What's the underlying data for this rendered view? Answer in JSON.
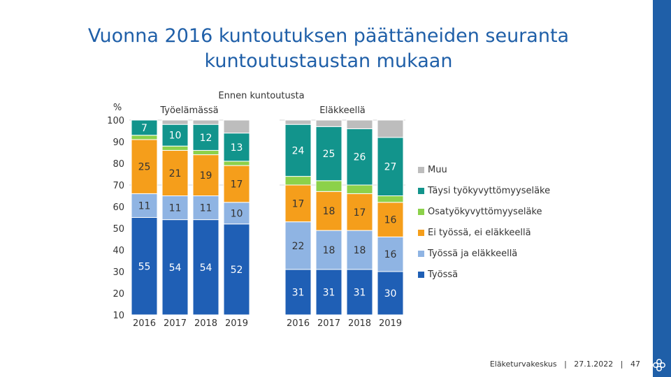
{
  "slide": {
    "title_line1": "Vuonna 2016 kuntoutuksen päättäneiden seuranta",
    "title_line2": "kuntoutustaustan mukaan",
    "footer_org": "Eläketurvakeskus",
    "footer_date": "27.1.2022",
    "footer_page": "47",
    "footer_sep": "|"
  },
  "colors": {
    "Työssä": "#1f5fb5",
    "Työssä ja eläkkeellä": "#8fb4e3",
    "Ei työssä, ei eläkkeellä": "#f59e1b",
    "Osatyökyvyttömyyseläke": "#8cd14a",
    "Täysi työkyvyttömyyseläke": "#12948c",
    "Muu": "#bdbdbd"
  },
  "chart_data": {
    "type": "bar",
    "stacked": true,
    "title": "Ennen  kuntoutusta",
    "ylabel": "%",
    "ylim": [
      10,
      100
    ],
    "yticks": [
      10,
      20,
      30,
      40,
      50,
      60,
      70,
      80,
      90,
      100
    ],
    "groups": [
      {
        "label": "Työelämässä",
        "categories": [
          "2016",
          "2017",
          "2018",
          "2019"
        ]
      },
      {
        "label": "Eläkkeellä",
        "categories": [
          "2016",
          "2017",
          "2018",
          "2019"
        ]
      }
    ],
    "series": [
      {
        "name": "Työssä",
        "values": [
          [
            55,
            54,
            54,
            52
          ],
          [
            31,
            31,
            31,
            30
          ]
        ],
        "labels": [
          [
            "55",
            "54",
            "54",
            "52"
          ],
          [
            "31",
            "31",
            "31",
            "30"
          ]
        ]
      },
      {
        "name": "Työssä ja eläkkeellä",
        "values": [
          [
            11,
            11,
            11,
            10
          ],
          [
            22,
            18,
            18,
            16
          ]
        ],
        "labels": [
          [
            "11",
            "11",
            "11",
            "10"
          ],
          [
            "22",
            "18",
            "18",
            "16"
          ]
        ]
      },
      {
        "name": "Ei työssä, ei eläkkeellä",
        "values": [
          [
            25,
            21,
            19,
            17
          ],
          [
            17,
            18,
            17,
            16
          ]
        ],
        "labels": [
          [
            "25",
            "21",
            "19",
            "17"
          ],
          [
            "17",
            "18",
            "17",
            "16"
          ]
        ]
      },
      {
        "name": "Osatyökyvyttömyyseläke",
        "values": [
          [
            2,
            2,
            2,
            2
          ],
          [
            4,
            5,
            4,
            3
          ]
        ],
        "labels": [
          [
            "",
            "",
            "",
            ""
          ],
          [
            "",
            "",
            "",
            ""
          ]
        ]
      },
      {
        "name": "Täysi työkyvyttömyyseläke",
        "values": [
          [
            7,
            10,
            12,
            13
          ],
          [
            24,
            25,
            26,
            27
          ]
        ],
        "labels": [
          [
            "7",
            "10",
            "12",
            "13"
          ],
          [
            "24",
            "25",
            "26",
            "27"
          ]
        ]
      },
      {
        "name": "Muu",
        "values": [
          [
            0,
            2,
            2,
            6
          ],
          [
            2,
            3,
            4,
            8
          ]
        ],
        "labels": [
          [
            "",
            "",
            "",
            ""
          ],
          [
            "",
            "",
            "",
            ""
          ]
        ]
      }
    ],
    "legend": [
      "Muu",
      "Täysi työkyvyttömyyseläke",
      "Osatyökyvyttömyyseläke",
      "Ei työssä, ei eläkkeellä",
      "Työssä ja eläkkeellä",
      "Työssä"
    ],
    "legend_position": "right"
  }
}
